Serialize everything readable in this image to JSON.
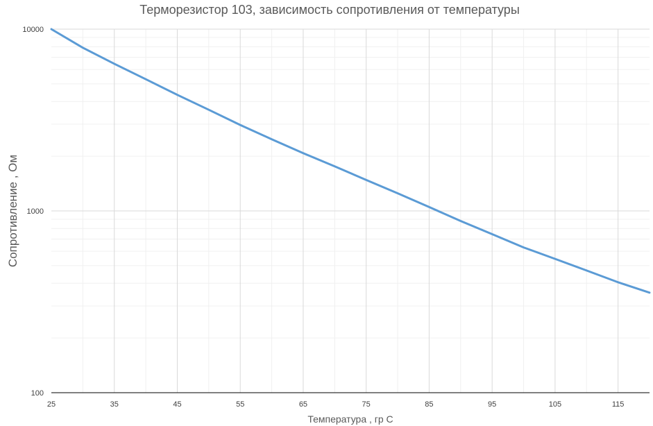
{
  "chart_data": {
    "type": "line",
    "title": "Терморезистор 103, зависимость сопротивления от температуры",
    "xlabel": "Температура , гр С",
    "ylabel": "Сопротивление , Ом",
    "y_scale": "log",
    "xlim": [
      25,
      120
    ],
    "ylim": [
      100,
      10000
    ],
    "x_ticks": [
      "25",
      "35",
      "45",
      "55",
      "65",
      "75",
      "85",
      "95",
      "105",
      "115"
    ],
    "y_ticks": [
      "10000",
      "1000",
      "100"
    ],
    "grid": true,
    "series": [
      {
        "color": "#5b9bd5",
        "x": [
          25,
          30,
          35,
          40,
          45,
          50,
          55,
          60,
          65,
          70,
          75,
          80,
          85,
          90,
          95,
          100,
          105,
          110,
          115,
          120
        ],
        "y": [
          10000,
          7900,
          6450,
          5300,
          4350,
          3600,
          2970,
          2480,
          2080,
          1760,
          1480,
          1250,
          1050,
          880,
          745,
          630,
          545,
          470,
          405,
          355
        ]
      }
    ]
  }
}
